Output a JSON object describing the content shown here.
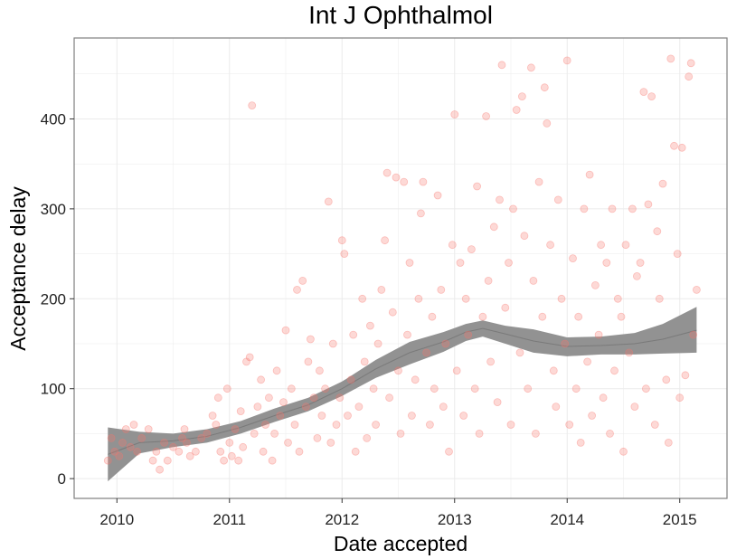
{
  "chart_data": {
    "type": "scatter",
    "title": "Int J Ophthalmol",
    "xlabel": "Date accepted",
    "ylabel": "Acceptance delay",
    "xlim": [
      2009.62,
      2015.42
    ],
    "ylim": [
      -22,
      490
    ],
    "x_ticks": [
      2010,
      2011,
      2012,
      2013,
      2014,
      2015
    ],
    "x_tick_labels": [
      "2010",
      "2011",
      "2012",
      "2013",
      "2014",
      "2015"
    ],
    "y_ticks": [
      0,
      100,
      200,
      300,
      400
    ],
    "y_tick_labels": [
      "0",
      "100",
      "200",
      "300",
      "400"
    ],
    "grid": true,
    "colors": {
      "points": "#f8766d",
      "band": "#8c8c8c",
      "smooth_line": "#7a7a7a",
      "panel_border": "#7f7f7f",
      "grid": "#ebebeb"
    },
    "series": [
      {
        "points": [
          [
            2009.92,
            20
          ],
          [
            2009.95,
            45
          ],
          [
            2009.98,
            30
          ],
          [
            2010.02,
            25
          ],
          [
            2010.05,
            40
          ],
          [
            2010.08,
            55
          ],
          [
            2010.12,
            35
          ],
          [
            2010.15,
            60
          ],
          [
            2010.18,
            30
          ],
          [
            2010.22,
            45
          ],
          [
            2010.28,
            55
          ],
          [
            2010.32,
            20
          ],
          [
            2010.35,
            30
          ],
          [
            2010.38,
            10
          ],
          [
            2010.42,
            40
          ],
          [
            2010.45,
            20
          ],
          [
            2010.5,
            35
          ],
          [
            2010.55,
            30
          ],
          [
            2010.58,
            45
          ],
          [
            2010.6,
            55
          ],
          [
            2010.62,
            40
          ],
          [
            2010.65,
            25
          ],
          [
            2010.7,
            30
          ],
          [
            2010.75,
            45
          ],
          [
            2010.8,
            50
          ],
          [
            2010.85,
            70
          ],
          [
            2010.88,
            60
          ],
          [
            2010.9,
            90
          ],
          [
            2010.92,
            30
          ],
          [
            2010.95,
            20
          ],
          [
            2010.98,
            100
          ],
          [
            2011.0,
            40
          ],
          [
            2011.02,
            25
          ],
          [
            2011.05,
            55
          ],
          [
            2011.08,
            20
          ],
          [
            2011.1,
            75
          ],
          [
            2011.12,
            35
          ],
          [
            2011.15,
            130
          ],
          [
            2011.18,
            135
          ],
          [
            2011.2,
            415
          ],
          [
            2011.22,
            50
          ],
          [
            2011.25,
            80
          ],
          [
            2011.28,
            110
          ],
          [
            2011.3,
            30
          ],
          [
            2011.32,
            60
          ],
          [
            2011.35,
            90
          ],
          [
            2011.38,
            20
          ],
          [
            2011.4,
            50
          ],
          [
            2011.42,
            120
          ],
          [
            2011.45,
            70
          ],
          [
            2011.48,
            85
          ],
          [
            2011.5,
            165
          ],
          [
            2011.52,
            40
          ],
          [
            2011.55,
            100
          ],
          [
            2011.58,
            60
          ],
          [
            2011.6,
            210
          ],
          [
            2011.62,
            30
          ],
          [
            2011.65,
            220
          ],
          [
            2011.68,
            80
          ],
          [
            2011.7,
            130
          ],
          [
            2011.72,
            155
          ],
          [
            2011.75,
            90
          ],
          [
            2011.78,
            45
          ],
          [
            2011.8,
            120
          ],
          [
            2011.82,
            70
          ],
          [
            2011.85,
            100
          ],
          [
            2011.88,
            308
          ],
          [
            2011.9,
            40
          ],
          [
            2011.92,
            150
          ],
          [
            2011.95,
            60
          ],
          [
            2011.98,
            90
          ],
          [
            2012.0,
            265
          ],
          [
            2012.02,
            250
          ],
          [
            2012.05,
            70
          ],
          [
            2012.08,
            110
          ],
          [
            2012.1,
            160
          ],
          [
            2012.12,
            30
          ],
          [
            2012.15,
            80
          ],
          [
            2012.18,
            200
          ],
          [
            2012.2,
            130
          ],
          [
            2012.22,
            45
          ],
          [
            2012.25,
            170
          ],
          [
            2012.28,
            100
          ],
          [
            2012.3,
            60
          ],
          [
            2012.32,
            150
          ],
          [
            2012.35,
            210
          ],
          [
            2012.38,
            265
          ],
          [
            2012.4,
            340
          ],
          [
            2012.42,
            90
          ],
          [
            2012.45,
            185
          ],
          [
            2012.48,
            335
          ],
          [
            2012.5,
            120
          ],
          [
            2012.52,
            50
          ],
          [
            2012.55,
            330
          ],
          [
            2012.58,
            160
          ],
          [
            2012.6,
            240
          ],
          [
            2012.62,
            70
          ],
          [
            2012.65,
            110
          ],
          [
            2012.68,
            200
          ],
          [
            2012.7,
            295
          ],
          [
            2012.72,
            330
          ],
          [
            2012.75,
            140
          ],
          [
            2012.78,
            60
          ],
          [
            2012.8,
            180
          ],
          [
            2012.82,
            100
          ],
          [
            2012.85,
            315
          ],
          [
            2012.88,
            210
          ],
          [
            2012.9,
            80
          ],
          [
            2012.92,
            150
          ],
          [
            2012.95,
            30
          ],
          [
            2012.98,
            260
          ],
          [
            2013.0,
            405
          ],
          [
            2013.02,
            120
          ],
          [
            2013.05,
            240
          ],
          [
            2013.08,
            70
          ],
          [
            2013.1,
            200
          ],
          [
            2013.12,
            160
          ],
          [
            2013.15,
            255
          ],
          [
            2013.18,
            100
          ],
          [
            2013.2,
            325
          ],
          [
            2013.22,
            50
          ],
          [
            2013.25,
            180
          ],
          [
            2013.28,
            403
          ],
          [
            2013.3,
            220
          ],
          [
            2013.32,
            130
          ],
          [
            2013.35,
            280
          ],
          [
            2013.38,
            85
          ],
          [
            2013.4,
            310
          ],
          [
            2013.42,
            460
          ],
          [
            2013.45,
            190
          ],
          [
            2013.48,
            240
          ],
          [
            2013.5,
            60
          ],
          [
            2013.52,
            300
          ],
          [
            2013.55,
            410
          ],
          [
            2013.58,
            140
          ],
          [
            2013.6,
            425
          ],
          [
            2013.62,
            270
          ],
          [
            2013.65,
            100
          ],
          [
            2013.68,
            457
          ],
          [
            2013.7,
            220
          ],
          [
            2013.72,
            50
          ],
          [
            2013.75,
            330
          ],
          [
            2013.78,
            180
          ],
          [
            2013.8,
            435
          ],
          [
            2013.82,
            395
          ],
          [
            2013.85,
            260
          ],
          [
            2013.88,
            120
          ],
          [
            2013.9,
            80
          ],
          [
            2013.92,
            310
          ],
          [
            2013.95,
            200
          ],
          [
            2013.98,
            150
          ],
          [
            2014.0,
            465
          ],
          [
            2014.02,
            60
          ],
          [
            2014.05,
            245
          ],
          [
            2014.08,
            100
          ],
          [
            2014.1,
            180
          ],
          [
            2014.12,
            40
          ],
          [
            2014.15,
            300
          ],
          [
            2014.18,
            130
          ],
          [
            2014.2,
            338
          ],
          [
            2014.22,
            70
          ],
          [
            2014.25,
            215
          ],
          [
            2014.28,
            160
          ],
          [
            2014.3,
            260
          ],
          [
            2014.32,
            90
          ],
          [
            2014.35,
            240
          ],
          [
            2014.38,
            50
          ],
          [
            2014.4,
            300
          ],
          [
            2014.42,
            120
          ],
          [
            2014.45,
            200
          ],
          [
            2014.48,
            180
          ],
          [
            2014.5,
            30
          ],
          [
            2014.52,
            260
          ],
          [
            2014.55,
            140
          ],
          [
            2014.58,
            300
          ],
          [
            2014.6,
            80
          ],
          [
            2014.62,
            225
          ],
          [
            2014.65,
            240
          ],
          [
            2014.68,
            430
          ],
          [
            2014.7,
            100
          ],
          [
            2014.72,
            305
          ],
          [
            2014.75,
            425
          ],
          [
            2014.78,
            60
          ],
          [
            2014.8,
            275
          ],
          [
            2014.82,
            200
          ],
          [
            2014.85,
            328
          ],
          [
            2014.88,
            110
          ],
          [
            2014.9,
            40
          ],
          [
            2014.92,
            467
          ],
          [
            2014.95,
            370
          ],
          [
            2014.98,
            250
          ],
          [
            2015.0,
            90
          ],
          [
            2015.02,
            368
          ],
          [
            2015.05,
            115
          ],
          [
            2015.08,
            447
          ],
          [
            2015.1,
            462
          ],
          [
            2015.12,
            160
          ],
          [
            2015.15,
            210
          ]
        ]
      }
    ],
    "smooth": {
      "x": [
        2009.92,
        2010.2,
        2010.5,
        2010.8,
        2011.1,
        2011.4,
        2011.7,
        2012.0,
        2012.3,
        2012.6,
        2012.9,
        2013.1,
        2013.25,
        2013.45,
        2013.7,
        2014.0,
        2014.3,
        2014.6,
        2014.85,
        2015.15
      ],
      "y": [
        27,
        40,
        42,
        47,
        57,
        70,
        82,
        100,
        122,
        140,
        152,
        163,
        167,
        161,
        153,
        147,
        148,
        150,
        155,
        165
      ],
      "ymin": [
        -3,
        28,
        35,
        40,
        50,
        63,
        75,
        92,
        112,
        127,
        141,
        153,
        158,
        150,
        140,
        136,
        138,
        138,
        139,
        140
      ],
      "ymax": [
        57,
        52,
        50,
        55,
        64,
        78,
        90,
        108,
        132,
        152,
        163,
        172,
        176,
        170,
        166,
        157,
        158,
        162,
        172,
        191
      ]
    }
  }
}
